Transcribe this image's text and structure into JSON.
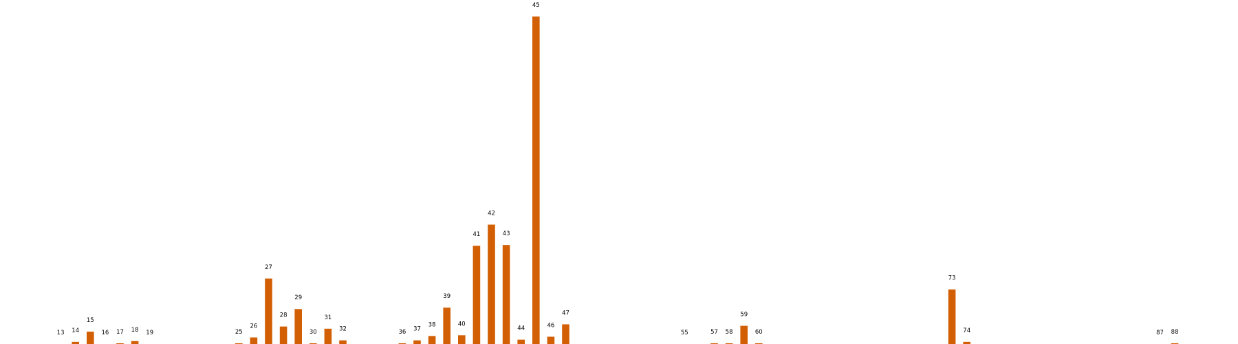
{
  "chart_data": {
    "type": "bar",
    "title": "",
    "xlabel": "",
    "ylabel": "",
    "ylim": [
      0,
      45
    ],
    "grid": false,
    "legend": "none",
    "bar_color": "#d35f04",
    "categories": [
      13,
      14,
      15,
      16,
      17,
      18,
      19,
      25,
      26,
      27,
      28,
      29,
      30,
      31,
      32,
      36,
      37,
      38,
      39,
      40,
      41,
      42,
      43,
      44,
      45,
      46,
      47,
      55,
      57,
      58,
      59,
      60,
      73,
      74,
      87,
      88
    ],
    "values": [
      0.0,
      0.3,
      1.7,
      0.0,
      0.1,
      0.4,
      0.0,
      0.1,
      0.9,
      9.0,
      2.4,
      4.8,
      0.1,
      2.1,
      0.5,
      0.1,
      0.5,
      1.1,
      5.0,
      1.2,
      13.5,
      16.4,
      13.6,
      0.6,
      45.0,
      1.0,
      2.7,
      0.0,
      0.1,
      0.1,
      2.5,
      0.1,
      7.5,
      0.3,
      0.0,
      0.1
    ],
    "data_labels": [
      "13",
      "14",
      "15",
      "16",
      "17",
      "18",
      "19",
      "25",
      "26",
      "27",
      "28",
      "29",
      "30",
      "31",
      "32",
      "36",
      "37",
      "38",
      "39",
      "40",
      "41",
      "42",
      "43",
      "44",
      "45",
      "46",
      "47",
      "55",
      "57",
      "58",
      "59",
      "60",
      "73",
      "74",
      "87",
      "88"
    ]
  }
}
